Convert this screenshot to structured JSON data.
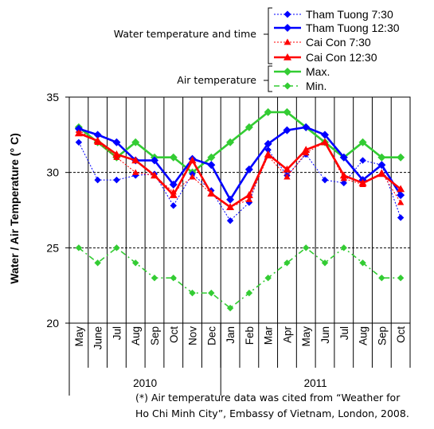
{
  "chart_data": {
    "type": "line",
    "categories": [
      "May",
      "June",
      "Jul",
      "Aug",
      "Sep",
      "Oct",
      "Nov",
      "Dec",
      "Jan",
      "Feb",
      "Mar",
      "Apr",
      "May",
      "Jun",
      "Jul",
      "Aug",
      "Sep",
      "Oct"
    ],
    "year_groups": [
      {
        "label": "2010",
        "from": 0,
        "to": 7
      },
      {
        "label": "2011",
        "from": 8,
        "to": 17
      }
    ],
    "ylabel": "Water / Air Temperature (° C)",
    "ylim": [
      20,
      35
    ],
    "yticks": [
      20,
      25,
      30,
      35
    ],
    "dashed_gridlines": [
      25,
      30
    ],
    "legend": {
      "placement": "top-right",
      "group_labels": [
        "Water temperature and time",
        "Air temperature"
      ]
    },
    "series": [
      {
        "name": "Tham Tuong  7:30",
        "color": "#0000ff",
        "marker": "diamond",
        "line": "dotted-thin",
        "group": 0,
        "values": [
          32.0,
          29.5,
          29.5,
          29.8,
          29.9,
          27.8,
          29.9,
          28.8,
          26.8,
          28.0,
          31.5,
          29.8,
          31.2,
          29.5,
          29.3,
          30.8,
          30.5,
          27.0
        ]
      },
      {
        "name": "Tham Tuong  12:30",
        "color": "#0000ff",
        "marker": "diamond",
        "line": "solid-thick",
        "group": 0,
        "values": [
          32.9,
          32.5,
          32.0,
          30.8,
          30.8,
          29.2,
          30.9,
          30.5,
          28.2,
          30.2,
          31.9,
          32.8,
          33.0,
          32.5,
          31.0,
          29.5,
          30.5,
          28.5
        ]
      },
      {
        "name": "Cai Con  7:30",
        "color": "#ff0000",
        "marker": "triangle",
        "line": "dotted-thin",
        "group": 0,
        "values": [
          32.8,
          32.0,
          31.0,
          30.0,
          29.8,
          28.7,
          29.7,
          28.6,
          27.7,
          28.2,
          31.1,
          29.7,
          31.3,
          32.0,
          29.6,
          29.2,
          30.0,
          28.0
        ]
      },
      {
        "name": "Cai Con 12:30",
        "color": "#ff0000",
        "marker": "triangle",
        "line": "solid-thick",
        "group": 0,
        "values": [
          32.6,
          32.1,
          31.2,
          30.8,
          29.8,
          28.5,
          30.8,
          28.6,
          27.7,
          28.5,
          31.2,
          30.2,
          31.5,
          32.0,
          29.8,
          29.3,
          29.9,
          28.9
        ]
      },
      {
        "name": "Max.",
        "color": "#33cc33",
        "marker": "diamond",
        "line": "solid-thick",
        "group": 1,
        "values": [
          33,
          32,
          31,
          32,
          31,
          31,
          30,
          31,
          32,
          33,
          34,
          34,
          33,
          32,
          31,
          32,
          31,
          31
        ]
      },
      {
        "name": "Min.",
        "color": "#33cc33",
        "marker": "diamond",
        "line": "dashdot",
        "group": 1,
        "values": [
          25,
          24,
          25,
          24,
          23,
          23,
          22,
          22,
          21,
          22,
          23,
          24,
          25,
          24,
          25,
          24,
          23,
          23
        ]
      }
    ]
  },
  "footnote": {
    "line1": "(*) Air temperature  data was cited from  “Weather for",
    "line2": "Ho Chi Minh City”, Embassy of Vietnam, London, 2008."
  }
}
